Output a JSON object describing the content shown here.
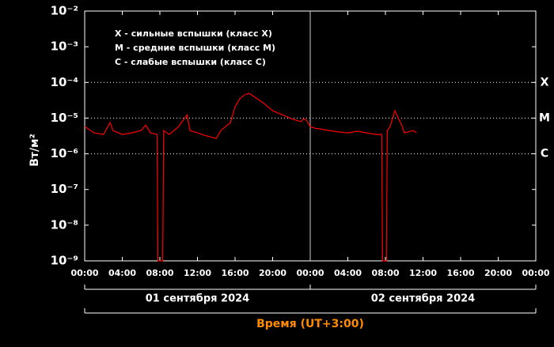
{
  "chart_data": {
    "type": "line",
    "scale": "log",
    "color": "#ff0000",
    "y_label": "Вт/м²",
    "x_label": "Время (UT+3:00)",
    "x_label_color": "#ff8c00",
    "annotations": [
      "X - сильные вспышки (класс X)",
      "M - средние вспышки (класс M)",
      "C - слабые вспышки (класс C)"
    ],
    "levels": [
      {
        "value": 0.0001,
        "label": "X"
      },
      {
        "value": 1e-05,
        "label": "M"
      },
      {
        "value": 1e-06,
        "label": "C"
      }
    ],
    "x_groups": [
      {
        "label": "01 сентября 2024",
        "range": [
          0,
          24
        ]
      },
      {
        "label": "02 сентября 2024",
        "range": [
          24,
          48
        ]
      }
    ],
    "xlim": [
      0,
      48
    ],
    "xticks": [
      {
        "value": 0,
        "label": "00:00"
      },
      {
        "value": 4,
        "label": "04:00"
      },
      {
        "value": 8,
        "label": "08:00"
      },
      {
        "value": 12,
        "label": "12:00"
      },
      {
        "value": 16,
        "label": "16:00"
      },
      {
        "value": 20,
        "label": "20:00"
      },
      {
        "value": 24,
        "label": "00:00"
      },
      {
        "value": 28,
        "label": "04:00"
      },
      {
        "value": 32,
        "label": "08:00"
      },
      {
        "value": 36,
        "label": "12:00"
      },
      {
        "value": 40,
        "label": "16:00"
      },
      {
        "value": 44,
        "label": "20:00"
      },
      {
        "value": 48,
        "label": "00:00"
      }
    ],
    "ylim": [
      1e-09,
      0.01
    ],
    "yticks": [
      {
        "value": 1e-09,
        "label": "10⁻⁹"
      },
      {
        "value": 1e-08,
        "label": "10⁻⁸"
      },
      {
        "value": 1e-07,
        "label": "10⁻⁷"
      },
      {
        "value": 1e-06,
        "label": "10⁻⁶"
      },
      {
        "value": 1e-05,
        "label": "10⁻⁵"
      },
      {
        "value": 0.0001,
        "label": "10⁻⁴"
      },
      {
        "value": 0.001,
        "label": "10⁻³"
      },
      {
        "value": 0.01,
        "label": "10⁻²"
      }
    ],
    "x": [
      0,
      1,
      2,
      2.7,
      3,
      4,
      5,
      6,
      6.5,
      7,
      7.7,
      7.8,
      8.3,
      8.4,
      9,
      10,
      10.9,
      11.2,
      12,
      13,
      14,
      14.5,
      15,
      15.5,
      16,
      16.5,
      17,
      17.5,
      18,
      19,
      20,
      21,
      22,
      23,
      23.3,
      23.6,
      24,
      24.5,
      25,
      26,
      27,
      28,
      29,
      30,
      31,
      31.6,
      31.7,
      32.1,
      32.2,
      32.5,
      33,
      33.4,
      33.8,
      34,
      35,
      35.3
    ],
    "values": [
      5.8e-06,
      3.85e-06,
      3.48e-06,
      7.5e-06,
      4.49e-06,
      3.48e-06,
      3.85e-06,
      4.49e-06,
      6.4e-06,
      3.85e-06,
      3.48e-06,
      1e-09,
      1e-09,
      4.49e-06,
      3.48e-06,
      5.8e-06,
      1.25e-05,
      4.49e-06,
      3.85e-06,
      3.14e-06,
      2.7e-06,
      4.49e-06,
      5.8e-06,
      7.5e-06,
      2.07e-05,
      3.46e-05,
      4.47e-05,
      4.94e-05,
      4.03e-05,
      2.68e-05,
      1.61e-05,
      1.25e-05,
      9.6e-06,
      7.9e-06,
      9.6e-06,
      8.7e-06,
      5.8e-06,
      5.2e-06,
      5e-06,
      4.49e-06,
      4.1e-06,
      3.85e-06,
      4.3e-06,
      3.85e-06,
      3.48e-06,
      3.48e-06,
      1e-09,
      1e-09,
      4.49e-06,
      5.8e-06,
      1.61e-05,
      9.6e-06,
      5.8e-06,
      3.85e-06,
      4.49e-06,
      3.85e-06
    ]
  }
}
